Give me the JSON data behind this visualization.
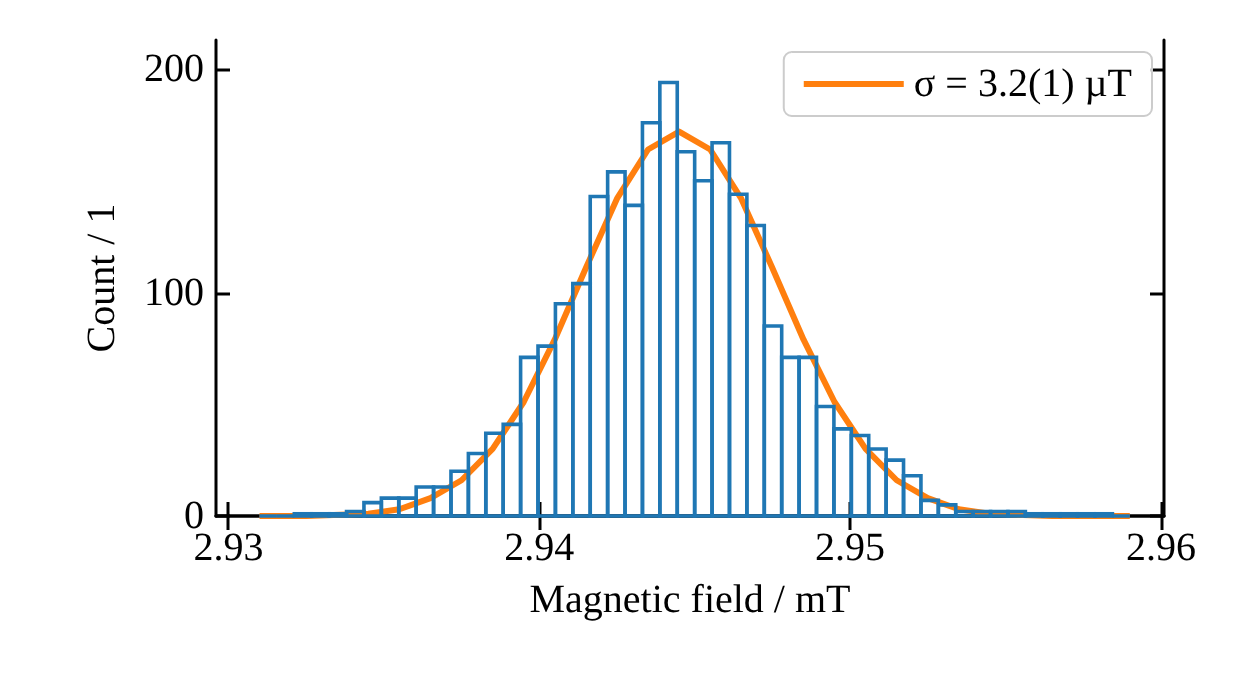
{
  "chart_data": {
    "type": "histogram",
    "xlabel": "Magnetic field / mT",
    "ylabel": "Count / 1",
    "xlim": [
      2.9296,
      2.9601
    ],
    "ylim": [
      0,
      213
    ],
    "xticks": [
      2.93,
      2.94,
      2.95,
      2.96
    ],
    "yticks": [
      0,
      100,
      200
    ],
    "grid": false,
    "legend": "top right",
    "series": [
      {
        "color": "#1f77b4",
        "bins": [
          2.931,
          2.93156,
          2.93212,
          2.93268,
          2.93324,
          2.9338,
          2.93436,
          2.93492,
          2.93548,
          2.93604,
          2.9366,
          2.93716,
          2.93772,
          2.93828,
          2.93884,
          2.9394,
          2.93996,
          2.94052,
          2.94108,
          2.94164,
          2.9422,
          2.94276,
          2.94332,
          2.94388,
          2.94444,
          2.945,
          2.94556,
          2.94612,
          2.94668,
          2.94724,
          2.9478,
          2.94836,
          2.94892,
          2.94948,
          2.95004,
          2.9506,
          2.95116,
          2.95172,
          2.95228,
          2.95284,
          2.9534,
          2.95396,
          2.95452,
          2.95508,
          2.95564,
          2.9562,
          2.95676,
          2.95732,
          2.95788,
          2.95844,
          2.959
        ],
        "values": [
          0,
          0,
          1,
          1,
          1,
          2,
          6,
          8,
          8,
          13,
          13,
          20,
          28,
          37,
          41,
          71,
          76,
          95,
          104,
          143,
          154,
          139,
          176,
          194,
          163,
          150,
          167,
          144,
          130,
          85,
          71,
          71,
          49,
          39,
          36,
          30,
          25,
          18,
          7,
          5,
          2,
          2,
          2,
          2,
          1,
          1,
          1,
          1,
          1,
          0
        ]
      },
      {
        "type": "line",
        "name": "σ = 3.2(1) µT",
        "color": "#ff7f0e",
        "x": [
          2.931,
          2.9325,
          2.9345,
          2.9355,
          2.9365,
          2.9375,
          2.9385,
          2.9395,
          2.9405,
          2.9415,
          2.9425,
          2.9435,
          2.9445,
          2.9455,
          2.9465,
          2.9475,
          2.9485,
          2.9495,
          2.9505,
          2.9515,
          2.9525,
          2.9535,
          2.9545,
          2.9565,
          2.959
        ],
        "values": [
          0,
          0,
          1,
          3,
          8,
          16,
          30,
          51,
          79,
          111,
          142,
          164,
          172,
          164,
          142,
          111,
          79,
          51,
          30,
          16,
          8,
          3,
          1,
          0,
          0
        ]
      }
    ]
  }
}
